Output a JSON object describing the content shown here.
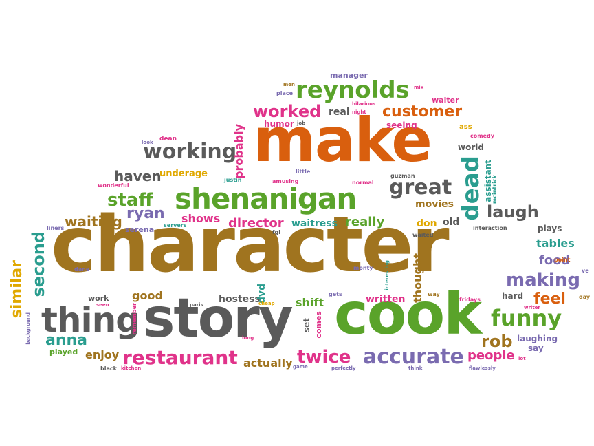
{
  "palette": {
    "brown": "#a0741f",
    "orange": "#d95f0e",
    "green": "#5aa32a",
    "gray": "#5a5a5a",
    "pink": "#e0338a",
    "purple": "#7a6bb0",
    "teal": "#2a9d8f",
    "gold": "#e0a800"
  },
  "words": [
    {
      "text": "character",
      "color": "brown"
    },
    {
      "text": "make",
      "color": "orange"
    },
    {
      "text": "cook",
      "color": "green"
    },
    {
      "text": "story",
      "color": "gray"
    },
    {
      "text": "thing",
      "color": "gray"
    },
    {
      "text": "shenanigan",
      "color": "green"
    },
    {
      "text": "reynolds",
      "color": "green"
    },
    {
      "text": "restaurant",
      "color": "pink"
    },
    {
      "text": "accurate",
      "color": "purple"
    },
    {
      "text": "working",
      "color": "gray"
    },
    {
      "text": "great",
      "color": "gray"
    },
    {
      "text": "dead",
      "color": "teal"
    },
    {
      "text": "funny",
      "color": "green"
    },
    {
      "text": "making",
      "color": "purple"
    },
    {
      "text": "worked",
      "color": "pink"
    },
    {
      "text": "customer",
      "color": "orange"
    },
    {
      "text": "staff",
      "color": "green"
    },
    {
      "text": "twice",
      "color": "pink"
    },
    {
      "text": "laugh",
      "color": "gray"
    },
    {
      "text": "ryan",
      "color": "purple"
    },
    {
      "text": "haven",
      "color": "gray"
    },
    {
      "text": "waiting",
      "color": "brown"
    },
    {
      "text": "second",
      "color": "teal"
    },
    {
      "text": "similar",
      "color": "gold"
    },
    {
      "text": "anna",
      "color": "teal"
    },
    {
      "text": "rob",
      "color": "brown"
    },
    {
      "text": "feel",
      "color": "orange"
    },
    {
      "text": "people",
      "color": "pink"
    },
    {
      "text": "director",
      "color": "pink"
    },
    {
      "text": "really",
      "color": "green"
    },
    {
      "text": "food",
      "color": "purple"
    },
    {
      "text": "tables",
      "color": "teal"
    },
    {
      "text": "shows",
      "color": "pink"
    },
    {
      "text": "actually",
      "color": "brown"
    },
    {
      "text": "enjoy",
      "color": "brown"
    },
    {
      "text": "good",
      "color": "brown"
    },
    {
      "text": "hostess",
      "color": "gray"
    },
    {
      "text": "shift",
      "color": "green"
    },
    {
      "text": "written",
      "color": "pink"
    },
    {
      "text": "waitress",
      "color": "teal"
    },
    {
      "text": "movies",
      "color": "brown"
    },
    {
      "text": "probably",
      "color": "pink"
    },
    {
      "text": "thought",
      "color": "brown"
    },
    {
      "text": "underage",
      "color": "gold"
    },
    {
      "text": "humor",
      "color": "pink"
    },
    {
      "text": "seeing",
      "color": "pink"
    },
    {
      "text": "real",
      "color": "gray"
    },
    {
      "text": "manager",
      "color": "purple"
    },
    {
      "text": "don",
      "color": "gold"
    },
    {
      "text": "old",
      "color": "gray"
    },
    {
      "text": "plays",
      "color": "gray"
    },
    {
      "text": "laughing",
      "color": "purple"
    },
    {
      "text": "world",
      "color": "gray"
    },
    {
      "text": "assistant",
      "color": "teal"
    },
    {
      "text": "dvd",
      "color": "teal"
    },
    {
      "text": "set",
      "color": "gray"
    },
    {
      "text": "comes",
      "color": "pink"
    },
    {
      "text": "hard",
      "color": "gray"
    },
    {
      "text": "work",
      "color": "gray"
    },
    {
      "text": "played",
      "color": "green"
    },
    {
      "text": "say",
      "color": "purple"
    },
    {
      "text": "waiter",
      "color": "pink"
    },
    {
      "text": "serena",
      "color": "purple"
    },
    {
      "text": "dean",
      "color": "pink"
    },
    {
      "text": "ass",
      "color": "gold"
    },
    {
      "text": "comedy",
      "color": "pink"
    },
    {
      "text": "wonderful",
      "color": "pink"
    },
    {
      "text": "fridays",
      "color": "pink"
    },
    {
      "text": "point",
      "color": "orange"
    },
    {
      "text": "justin",
      "color": "teal"
    },
    {
      "text": "amusing",
      "color": "pink"
    },
    {
      "text": "normal",
      "color": "pink"
    },
    {
      "text": "mcintrick",
      "color": "teal"
    },
    {
      "text": "guzman",
      "color": "gray"
    },
    {
      "text": "little",
      "color": "purple"
    },
    {
      "text": "servers",
      "color": "teal"
    },
    {
      "text": "fgi",
      "color": "gray"
    },
    {
      "text": "waited",
      "color": "gray"
    },
    {
      "text": "interaction",
      "color": "gray"
    },
    {
      "text": "liners",
      "color": "purple"
    },
    {
      "text": "monty",
      "color": "purple"
    },
    {
      "text": "interesting",
      "color": "teal"
    },
    {
      "text": "dane",
      "color": "purple"
    },
    {
      "text": "gets",
      "color": "purple"
    },
    {
      "text": "way",
      "color": "brown"
    },
    {
      "text": "writer",
      "color": "pink"
    },
    {
      "text": "day",
      "color": "brown"
    },
    {
      "text": "ve",
      "color": "purple"
    },
    {
      "text": "seen",
      "color": "pink"
    },
    {
      "text": "paris",
      "color": "gray"
    },
    {
      "text": "cheap",
      "color": "gold"
    },
    {
      "text": "long",
      "color": "pink"
    },
    {
      "text": "background",
      "color": "purple"
    },
    {
      "text": "remember",
      "color": "pink"
    },
    {
      "text": "black",
      "color": "gray"
    },
    {
      "text": "kitchen",
      "color": "pink"
    },
    {
      "text": "game",
      "color": "purple"
    },
    {
      "text": "perfectly",
      "color": "purple"
    },
    {
      "text": "think",
      "color": "purple"
    },
    {
      "text": "flawlessly",
      "color": "purple"
    },
    {
      "text": "lot",
      "color": "pink"
    },
    {
      "text": "look",
      "color": "purple"
    },
    {
      "text": "men",
      "color": "brown"
    },
    {
      "text": "place",
      "color": "purple"
    },
    {
      "text": "job",
      "color": "gray"
    },
    {
      "text": "night",
      "color": "pink"
    },
    {
      "text": "hilarious",
      "color": "pink"
    },
    {
      "text": "mix",
      "color": "pink"
    }
  ]
}
